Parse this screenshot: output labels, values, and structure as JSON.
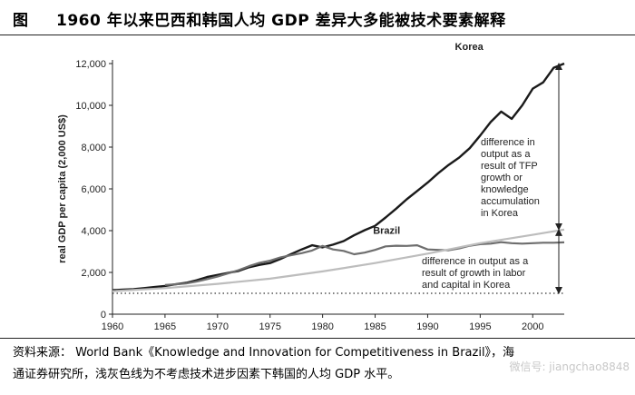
{
  "figure": {
    "label": "图",
    "title": "1960 年以来巴西和韩国人均 GDP 差异大多能被技术要素解释"
  },
  "footer": {
    "source_line1": "资料来源： World Bank《Knowledge and Innovation for Competitiveness in Brazil》，海",
    "source_line2": "通证券研究所，浅灰色线为不考虑技术进步因素下韩国的人均 GDP 水平。",
    "watermark": "微信号: jiangchao8848"
  },
  "chart_data": {
    "type": "line",
    "ylabel": "real GDP per capita (2,000 US$)",
    "xlim": [
      1960,
      2003
    ],
    "ylim": [
      0,
      12000
    ],
    "x_ticks": [
      1960,
      1965,
      1970,
      1975,
      1980,
      1985,
      1990,
      1995,
      2000
    ],
    "y_ticks": [
      0,
      2000,
      4000,
      6000,
      8000,
      10000,
      12000
    ],
    "y_tick_labels": [
      "0",
      "2,000",
      "4,000",
      "6,000",
      "8,000",
      "10,000",
      "12,000"
    ],
    "series": [
      {
        "name": "Korea",
        "color": "#1a1a1a",
        "x": [
          1960,
          1961,
          1962,
          1963,
          1964,
          1965,
          1966,
          1967,
          1968,
          1969,
          1970,
          1971,
          1972,
          1973,
          1974,
          1975,
          1976,
          1977,
          1978,
          1979,
          1980,
          1981,
          1982,
          1983,
          1984,
          1985,
          1986,
          1987,
          1988,
          1989,
          1990,
          1991,
          1992,
          1993,
          1994,
          1995,
          1996,
          1997,
          1998,
          1999,
          2000,
          2001,
          2002,
          2003
        ],
        "y": [
          1150,
          1180,
          1200,
          1250,
          1300,
          1350,
          1430,
          1500,
          1620,
          1780,
          1880,
          1980,
          2070,
          2250,
          2360,
          2450,
          2650,
          2880,
          3100,
          3300,
          3200,
          3330,
          3500,
          3780,
          4020,
          4230,
          4630,
          5050,
          5500,
          5900,
          6300,
          6750,
          7150,
          7500,
          7950,
          8550,
          9200,
          9700,
          9350,
          10000,
          10800,
          11100,
          11800,
          12000
        ]
      },
      {
        "name": "Brazil",
        "color": "#6e6e6e",
        "x": [
          1965,
          1966,
          1967,
          1968,
          1969,
          1970,
          1971,
          1972,
          1973,
          1974,
          1975,
          1976,
          1977,
          1978,
          1979,
          1980,
          1981,
          1982,
          1983,
          1984,
          1985,
          1986,
          1987,
          1988,
          1989,
          1990,
          1991,
          1992,
          1993,
          1994,
          1995,
          1996,
          1997,
          1998,
          1999,
          2000,
          2001,
          2002,
          2003
        ],
        "y": [
          1400,
          1430,
          1470,
          1560,
          1680,
          1800,
          1950,
          2110,
          2300,
          2460,
          2560,
          2720,
          2820,
          2920,
          3050,
          3270,
          3100,
          3030,
          2870,
          2950,
          3080,
          3250,
          3280,
          3270,
          3300,
          3100,
          3080,
          3060,
          3150,
          3280,
          3350,
          3380,
          3450,
          3400,
          3380,
          3400,
          3420,
          3420,
          3440
        ]
      },
      {
        "name": "",
        "color": "#bdbdbd",
        "x": [
          1960,
          1965,
          1970,
          1975,
          1980,
          1985,
          1990,
          1995,
          2000,
          2003
        ],
        "y": [
          1100,
          1250,
          1450,
          1700,
          2050,
          2450,
          2900,
          3400,
          3800,
          4050
        ]
      }
    ],
    "reference_line": {
      "y": 1000,
      "style": "dotted"
    },
    "annotations": [
      {
        "text": [
          "difference in",
          "output as a",
          "result of TFP",
          "growth or",
          "knowledge",
          "accumulation",
          "in Korea"
        ],
        "arrow_x": 2003,
        "from_y": 4050,
        "to_y": 12000
      },
      {
        "text": [
          "difference in output as a",
          "result of growth in labor",
          "and capital in Korea"
        ],
        "arrow_x": 2003,
        "from_y": 1000,
        "to_y": 4050
      }
    ]
  }
}
